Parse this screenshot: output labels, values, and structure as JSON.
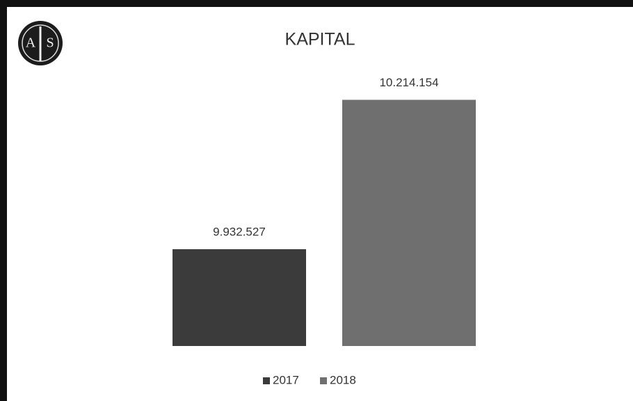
{
  "logo": {
    "left": "A",
    "right": "S"
  },
  "chart_data": {
    "type": "bar",
    "title": "KAPITAL",
    "categories": [
      null
    ],
    "series": [
      {
        "name": "2017",
        "color": "#3b3b3b",
        "values": [
          9932527
        ],
        "value_labels": [
          "9.932.527"
        ]
      },
      {
        "name": "2018",
        "color": "#6f6f6f",
        "values": [
          10214154
        ],
        "value_labels": [
          "10.214.154"
        ]
      }
    ],
    "ylim": [
      9750000,
      10300000
    ],
    "legend": "bottom"
  }
}
